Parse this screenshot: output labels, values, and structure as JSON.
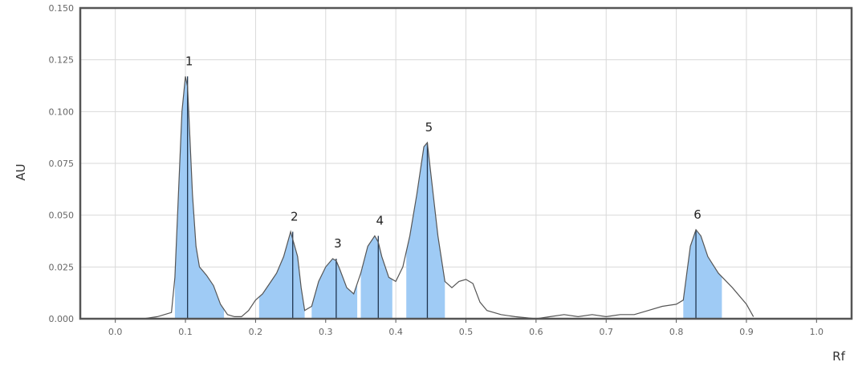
{
  "chart_data": {
    "type": "area",
    "xlabel": "Rf",
    "ylabel": "AU",
    "xlim": [
      -0.05,
      1.05
    ],
    "ylim": [
      0,
      0.15
    ],
    "x_ticks": [
      "0.0",
      "0.1",
      "0.2",
      "0.3",
      "0.4",
      "0.5",
      "0.6",
      "0.7",
      "0.8",
      "0.9",
      "1.0"
    ],
    "y_ticks": [
      "0.000",
      "0.025",
      "0.050",
      "0.075",
      "0.100",
      "0.125",
      "0.150"
    ],
    "grid": true,
    "colors": {
      "trace": "#555555",
      "fill": "#9fcbf5",
      "grid": "#d9d9d9",
      "frame": "#555555"
    },
    "trace": {
      "x": [
        0.04,
        0.06,
        0.08,
        0.085,
        0.09,
        0.095,
        0.1,
        0.103,
        0.106,
        0.11,
        0.115,
        0.12,
        0.13,
        0.14,
        0.15,
        0.16,
        0.17,
        0.18,
        0.19,
        0.2,
        0.21,
        0.22,
        0.23,
        0.24,
        0.25,
        0.26,
        0.265,
        0.27,
        0.28,
        0.29,
        0.3,
        0.31,
        0.315,
        0.32,
        0.33,
        0.34,
        0.35,
        0.36,
        0.37,
        0.375,
        0.38,
        0.39,
        0.4,
        0.41,
        0.42,
        0.43,
        0.44,
        0.445,
        0.45,
        0.46,
        0.47,
        0.48,
        0.49,
        0.5,
        0.51,
        0.52,
        0.53,
        0.55,
        0.57,
        0.6,
        0.62,
        0.64,
        0.66,
        0.68,
        0.7,
        0.72,
        0.74,
        0.76,
        0.78,
        0.8,
        0.81,
        0.82,
        0.828,
        0.835,
        0.845,
        0.86,
        0.88,
        0.9,
        0.91
      ],
      "y": [
        0,
        0.001,
        0.003,
        0.02,
        0.06,
        0.1,
        0.117,
        0.112,
        0.09,
        0.06,
        0.035,
        0.025,
        0.021,
        0.016,
        0.007,
        0.002,
        0.001,
        0.001,
        0.004,
        0.009,
        0.012,
        0.017,
        0.022,
        0.03,
        0.042,
        0.03,
        0.015,
        0.004,
        0.006,
        0.018,
        0.025,
        0.029,
        0.028,
        0.024,
        0.015,
        0.012,
        0.022,
        0.035,
        0.04,
        0.037,
        0.03,
        0.02,
        0.018,
        0.025,
        0.04,
        0.06,
        0.083,
        0.085,
        0.07,
        0.04,
        0.018,
        0.015,
        0.018,
        0.019,
        0.017,
        0.008,
        0.004,
        0.002,
        0.001,
        0,
        0.001,
        0.002,
        0.001,
        0.002,
        0.001,
        0.002,
        0.002,
        0.004,
        0.006,
        0.007,
        0.009,
        0.035,
        0.043,
        0.04,
        0.03,
        0.022,
        0.015,
        0.007,
        0.001
      ]
    },
    "peaks": [
      {
        "label": "1",
        "rf": 0.103,
        "au": 0.117,
        "start": 0.085,
        "end": 0.155
      },
      {
        "label": "2",
        "rf": 0.253,
        "au": 0.042,
        "start": 0.205,
        "end": 0.27
      },
      {
        "label": "3",
        "rf": 0.315,
        "au": 0.029,
        "start": 0.28,
        "end": 0.345
      },
      {
        "label": "4",
        "rf": 0.375,
        "au": 0.04,
        "start": 0.35,
        "end": 0.395
      },
      {
        "label": "5",
        "rf": 0.445,
        "au": 0.085,
        "start": 0.415,
        "end": 0.47
      },
      {
        "label": "6",
        "rf": 0.828,
        "au": 0.043,
        "start": 0.81,
        "end": 0.865
      }
    ]
  }
}
